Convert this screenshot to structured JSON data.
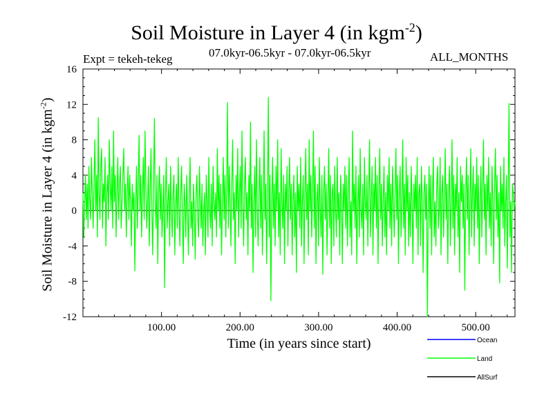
{
  "chart_data": {
    "type": "line",
    "title": {
      "main": "Soil Moisture in Layer 4 (in kgm",
      "sup": "-2",
      "close": ")"
    },
    "experiment": "Expt = tekeh-tekeg",
    "period": "07.0kyr-06.5kyr - 07.0kyr-06.5kyr",
    "months": "ALL_MONTHS",
    "xlabel": "Time (in years since start)",
    "ylabel": {
      "main": "Soil Moisture in Layer 4 (in kgm",
      "sup": "-2",
      "close": ")"
    },
    "xlim": [
      0,
      550
    ],
    "ylim": [
      -12,
      16
    ],
    "xticks": [
      100,
      200,
      300,
      400,
      500
    ],
    "xtick_labels": [
      "100.00",
      "200.00",
      "300.00",
      "400.00",
      "500.00"
    ],
    "yticks": [
      -12,
      -8,
      -4,
      0,
      4,
      8,
      12,
      16
    ],
    "ytick_labels": [
      "-12",
      "-8",
      "-4",
      "0",
      "4",
      "8",
      "12",
      "16"
    ],
    "zero_line": 0,
    "legend": {
      "placement": "bottom-right"
    },
    "series": [
      {
        "name": "Ocean",
        "color": "#0000ff",
        "values": []
      },
      {
        "name": "Land",
        "color": "#00ff00",
        "values": [
          2.0,
          -3.0,
          1.0,
          4.0,
          -1.0,
          3.0,
          -2.0,
          5.0,
          1.0,
          -1.0,
          6.0,
          2.0,
          -2.0,
          3.0,
          8.0,
          0.0,
          4.0,
          -3.0,
          10.5,
          2.0,
          -1.0,
          5.0,
          7.0,
          -2.0,
          3.0,
          1.0,
          6.0,
          -4.0,
          2.0,
          4.0,
          -1.0,
          8.0,
          3.0,
          0.0,
          5.0,
          -2.0,
          9.0,
          1.0,
          4.0,
          -3.0,
          2.0,
          6.0,
          -1.0,
          3.0,
          5.0,
          -2.0,
          1.0,
          4.0,
          7.0,
          0.0,
          3.0,
          -3.0,
          2.0,
          5.0,
          -1.0,
          4.0,
          1.0,
          -4.0,
          3.0,
          0.0,
          2.0,
          -6.8,
          1.0,
          5.0,
          -2.0,
          3.0,
          8.5,
          0.0,
          4.0,
          -3.0,
          2.0,
          6.0,
          -1.0,
          9.0,
          3.0,
          -2.0,
          1.0,
          5.0,
          -4.0,
          2.0,
          7.0,
          0.0,
          -5.0,
          3.0,
          10.4,
          1.0,
          -2.0,
          4.0,
          -6.0,
          2.0,
          5.0,
          -1.0,
          3.0,
          -3.0,
          0.0,
          4.0,
          -8.7,
          2.0,
          6.0,
          -2.0,
          1.0,
          3.0,
          -4.0,
          5.0,
          0.0,
          -3.0,
          2.0,
          4.0,
          -5.0,
          1.0,
          3.0,
          -2.0,
          6.0,
          0.0,
          -4.0,
          2.0,
          5.0,
          -1.0,
          -6.0,
          3.0,
          1.0,
          -3.0,
          4.0,
          0.0,
          -5.0,
          2.0,
          6.0,
          -2.0,
          1.0,
          -4.0,
          3.0,
          0.0,
          -5.5,
          2.0,
          4.0,
          -1.0,
          -3.0,
          5.0,
          1.0,
          -2.0,
          3.0,
          -4.0,
          0.0,
          2.0,
          -5.0,
          4.0,
          1.0,
          -3.0,
          6.0,
          0.0,
          -2.0,
          3.0,
          -4.0,
          5.0,
          1.0,
          -1.0,
          2.0,
          -3.0,
          7.0,
          0.0,
          4.0,
          -2.0,
          3.0,
          -5.0,
          1.0,
          6.0,
          -1.0,
          4.0,
          -3.0,
          2.0,
          12.2,
          -2.0,
          5.0,
          1.0,
          -4.0,
          3.0,
          8.0,
          -1.0,
          2.0,
          -6.0,
          4.0,
          0.0,
          7.0,
          -3.0,
          2.0,
          5.0,
          -2.0,
          9.0,
          1.0,
          -4.0,
          3.0,
          6.0,
          -1.0,
          2.0,
          -5.0,
          4.0,
          0.0,
          10.0,
          -2.0,
          3.0,
          -7.0,
          1.0,
          5.0,
          -3.0,
          8.0,
          0.0,
          -4.0,
          2.0,
          6.0,
          -2.0,
          4.0,
          -5.0,
          1.0,
          9.0,
          -1.0,
          3.0,
          -6.0,
          2.0,
          12.8,
          -3.0,
          4.0,
          -10.2,
          1.0,
          6.0,
          -2.0,
          3.0,
          -4.0,
          5.0,
          0.0,
          8.0,
          -3.0,
          2.0,
          -5.0,
          7.0,
          1.0,
          -2.0,
          4.0,
          -6.0,
          3.0,
          0.0,
          5.0,
          -4.0,
          2.0,
          6.0,
          -1.0,
          3.0,
          -5.0,
          1.0,
          4.0,
          -3.0,
          2.0,
          -7.0,
          5.0,
          0.0,
          3.0,
          -2.0,
          6.0,
          -4.0,
          1.0,
          4.0,
          -6.0,
          2.0,
          7.0,
          -1.0,
          3.0,
          -5.0,
          8.0,
          0.0,
          4.0,
          -3.0,
          2.0,
          9.0,
          -2.0,
          5.0,
          -6.0,
          1.0,
          3.0,
          -4.0,
          6.0,
          0.0,
          -3.0,
          4.0,
          -7.2,
          2.0,
          5.0,
          -1.0,
          3.0,
          -5.0,
          1.0,
          7.0,
          -2.0,
          4.0,
          -6.0,
          2.0,
          3.0,
          -4.0,
          5.0,
          0.0,
          -3.0,
          6.0,
          -1.0,
          2.0,
          -5.0,
          4.0,
          1.0,
          -6.0,
          3.0,
          0.0,
          5.0,
          -2.0,
          4.0,
          -4.0,
          2.0,
          6.0,
          -3.0,
          1.0,
          -5.0,
          9.0,
          0.0,
          3.0,
          -2.0,
          5.0,
          -6.0,
          1.0,
          4.0,
          -3.0,
          7.0,
          0.0,
          -2.0,
          3.0,
          -5.0,
          6.0,
          1.0,
          -1.0,
          4.0,
          -4.0,
          2.0,
          8.0,
          -3.0,
          1.0,
          5.0,
          -5.0,
          3.0,
          0.0,
          6.0,
          -2.0,
          4.0,
          -6.0,
          2.0,
          7.0,
          -1.0,
          3.0,
          -4.0,
          1.0,
          5.0,
          -3.0,
          2.0,
          -5.0,
          4.0,
          0.0,
          6.0,
          -2.0,
          3.0,
          -4.0,
          5.0,
          1.0,
          -3.0,
          2.0,
          7.0,
          -1.0,
          4.0,
          -6.0,
          2.0,
          5.0,
          -3.0,
          1.0,
          8.0,
          -2.0,
          3.0,
          -5.0,
          6.0,
          0.0,
          4.0,
          -4.0,
          2.0,
          -3.0,
          5.0,
          1.0,
          -6.0,
          3.0,
          0.0,
          4.0,
          -2.0,
          6.0,
          -5.0,
          2.0,
          3.0,
          -4.0,
          5.0,
          1.0,
          -7.0,
          2.0,
          4.0,
          -1.0,
          3.0,
          -12.0,
          0.0,
          5.0,
          -2.0,
          4.0,
          -5.0,
          2.0,
          6.0,
          -3.0,
          1.0,
          -4.0,
          3.0,
          5.0,
          -2.0,
          0.0,
          6.0,
          -5.0,
          2.0,
          4.0,
          -3.0,
          1.0,
          7.0,
          -1.0,
          3.0,
          -6.0,
          2.0,
          5.0,
          -4.0,
          1.0,
          8.0,
          -2.0,
          4.0,
          -5.0,
          3.0,
          0.0,
          6.0,
          -3.0,
          2.0,
          -7.0,
          5.0,
          1.0,
          4.0,
          -2.0,
          3.0,
          -9.0,
          2.0,
          6.0,
          -1.0,
          4.0,
          -5.0,
          1.0,
          7.0,
          -3.0,
          2.0,
          5.0,
          -4.0,
          3.0,
          0.0,
          6.0,
          -2.0,
          4.0,
          -6.0,
          1.0,
          5.0,
          -3.0,
          2.0,
          8.0,
          -1.0,
          3.0,
          -5.0,
          4.0,
          0.0,
          6.0,
          -2.0,
          2.0,
          -4.0,
          5.0,
          1.0,
          -6.0,
          3.0,
          7.0,
          -1.0,
          4.0,
          -3.0,
          2.0,
          -8.2,
          5.0,
          0.0,
          3.0,
          -2.0,
          6.0,
          -4.0,
          1.0,
          4.0,
          -6.5,
          2.0,
          12.1,
          -3.0,
          1.0,
          -7.0,
          3.0,
          2.0,
          0.0,
          1.0
        ]
      },
      {
        "name": "AllSurf",
        "color": "#000000",
        "values": []
      }
    ]
  },
  "colors": {
    "land": "#00ff00",
    "ocean": "#0000ff",
    "allsurf": "#000000",
    "axis": "#000000"
  }
}
